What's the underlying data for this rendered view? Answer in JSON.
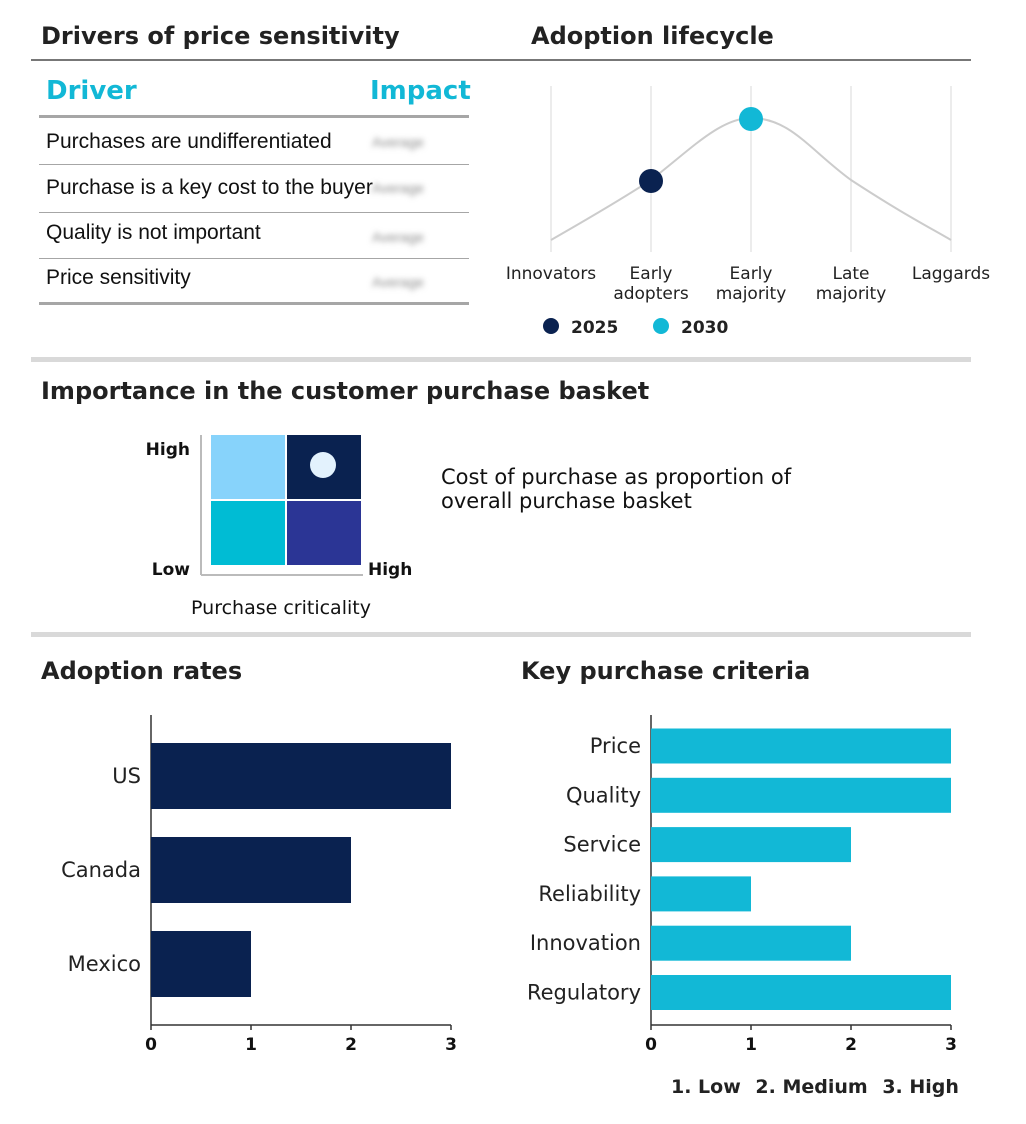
{
  "drivers_section": {
    "title": "Drivers of price sensitivity",
    "col_driver": "Driver",
    "col_impact": "Impact",
    "rows": [
      {
        "driver": "Purchases are undifferentiated",
        "impact": "Average"
      },
      {
        "driver": "Purchase is a key cost to the buyer",
        "impact": "Average"
      },
      {
        "driver": "Quality is not important",
        "impact": "Average"
      },
      {
        "driver": "Price sensitivity",
        "impact": "Average"
      }
    ]
  },
  "lifecycle_section": {
    "title": "Adoption lifecycle",
    "stages": [
      "Innovators",
      "Early\nadopters",
      "Early\nmajority",
      "Late\nmajority",
      "Laggards"
    ],
    "markers": [
      {
        "year": "2025",
        "stage_index": 1,
        "color": "#0a2250"
      },
      {
        "year": "2030",
        "stage_index": 2,
        "color": "#12b8d6"
      }
    ],
    "legend": [
      "2025",
      "2030"
    ]
  },
  "importance_section": {
    "title": "Importance in the customer purchase basket",
    "y_high": "High",
    "y_low": "Low",
    "x_high": "High",
    "x_label": "Purchase criticality",
    "description": "Cost of purchase as proportion of overall purchase basket",
    "quadrant_colors": {
      "top_left": "#87d3fb",
      "top_right": "#0a2250",
      "bottom_left": "#00bcd4",
      "bottom_right": "#2b3595"
    },
    "marker": {
      "column": "high",
      "row": "high"
    }
  },
  "chart_data": [
    {
      "type": "bar",
      "orientation": "horizontal",
      "title": "Adoption rates",
      "categories": [
        "US",
        "Canada",
        "Mexico"
      ],
      "values": [
        3,
        2,
        1
      ],
      "xlim": [
        0,
        3
      ],
      "xticks": [
        "0",
        "1",
        "2",
        "3"
      ],
      "color": "#0a2250"
    },
    {
      "type": "bar",
      "orientation": "horizontal",
      "title": "Key purchase criteria",
      "categories": [
        "Price",
        "Quality",
        "Service",
        "Reliability",
        "Innovation",
        "Regulatory"
      ],
      "values": [
        3,
        3,
        2,
        1,
        2,
        3
      ],
      "xlim": [
        0,
        3
      ],
      "xticks": [
        "0",
        "1",
        "2",
        "3"
      ],
      "color": "#12b8d6"
    }
  ],
  "scale_legend": {
    "low": "1. Low",
    "medium": "2. Medium",
    "high": "3. High"
  }
}
